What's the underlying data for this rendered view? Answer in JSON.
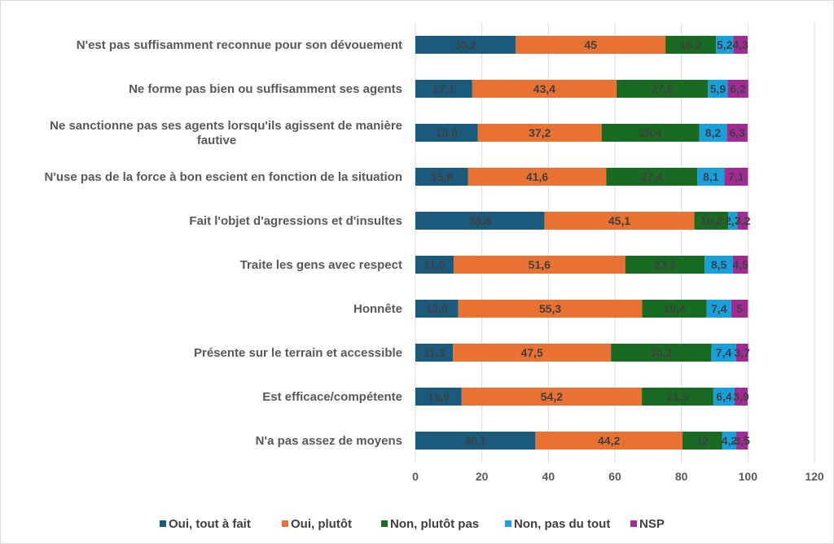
{
  "chart_data": {
    "type": "bar",
    "orientation": "horizontal",
    "stacked": true,
    "title": "",
    "xlabel": "",
    "ylabel": "",
    "xlim": [
      0,
      120
    ],
    "xticks": [
      0,
      20,
      40,
      60,
      80,
      100,
      120
    ],
    "grid": true,
    "legend_position": "bottom",
    "categories": [
      "N'est pas suffisamment reconnue pour son dévouement",
      "Ne forme pas bien ou suffisamment ses agents",
      "Ne sanctionne pas ses agents lorsqu'ils agissent de manière fautive",
      "N'use pas de la force à bon escient en fonction de la situation",
      "Fait l'objet d'agressions et d'insultes",
      "Traite les gens avec respect",
      "Honnête",
      "Présente sur le terrain et accessible",
      "Est efficace/compétente",
      "N'a pas assez de moyens"
    ],
    "category_lines": [
      [
        "N'est pas suffisamment reconnue pour son dévouement"
      ],
      [
        "Ne forme pas bien ou suffisamment ses agents"
      ],
      [
        "Ne sanctionne pas ses agents lorsqu'ils agissent de manière",
        "fautive"
      ],
      [
        "N'use pas de la force à bon escient en fonction de la situation"
      ],
      [
        "Fait l'objet d'agressions et d'insultes"
      ],
      [
        "Traite les gens avec respect"
      ],
      [
        "Honnête"
      ],
      [
        "Présente sur le terrain et accessible"
      ],
      [
        "Est efficace/compétente"
      ],
      [
        "N'a pas assez de moyens"
      ]
    ],
    "series": [
      {
        "name": "Oui, tout à fait",
        "color": "#1a5b7d",
        "values": [
          30.2,
          17.1,
          18.8,
          15.8,
          38.8,
          11.5,
          12.9,
          11.3,
          13.9,
          36.1
        ],
        "labels": [
          "30,2",
          "17,1",
          "18,8",
          "15,8",
          "38,8",
          "11,5",
          "12,9",
          "11,3",
          "13,9",
          "36,1"
        ]
      },
      {
        "name": "Oui, plutôt",
        "color": "#e97132",
        "values": [
          45,
          43.4,
          37.2,
          41.6,
          45.1,
          51.6,
          55.3,
          47.5,
          54.2,
          44.2
        ],
        "labels": [
          "45",
          "43,4",
          "37,2",
          "41,6",
          "45,1",
          "51,6",
          "55,3",
          "47,5",
          "54,2",
          "44,2"
        ]
      },
      {
        "name": "Non, plutôt pas",
        "color": "#196b24",
        "values": [
          15.2,
          27.5,
          29.4,
          27.4,
          10.2,
          23.9,
          19.4,
          30.2,
          21.5,
          12
        ],
        "labels": [
          "15,2",
          "27,5",
          "29,4",
          "27,4",
          "10,2",
          "23,9",
          "19,4",
          "30,2",
          "21,5",
          "12"
        ]
      },
      {
        "name": "Non, pas du tout",
        "color": "#17a0dc",
        "values": [
          5.2,
          5.9,
          8.2,
          8.1,
          2.7,
          8.5,
          7.4,
          7.4,
          6.4,
          4.2
        ],
        "labels": [
          "5,2",
          "5,9",
          "8,2",
          "8,1",
          "2,7",
          "8,5",
          "7,4",
          "7,4",
          "6,4",
          "4,2"
        ]
      },
      {
        "name": "NSP",
        "color": "#a02b93",
        "values": [
          4.3,
          6.2,
          6.3,
          7.1,
          3.2,
          4.5,
          5,
          3.7,
          3.9,
          3.5
        ],
        "labels": [
          "4,3",
          "6,2",
          "6,3",
          "7,1",
          "3,2",
          "4,5",
          "5",
          "3,7",
          "3,9",
          "3,5"
        ]
      }
    ]
  }
}
